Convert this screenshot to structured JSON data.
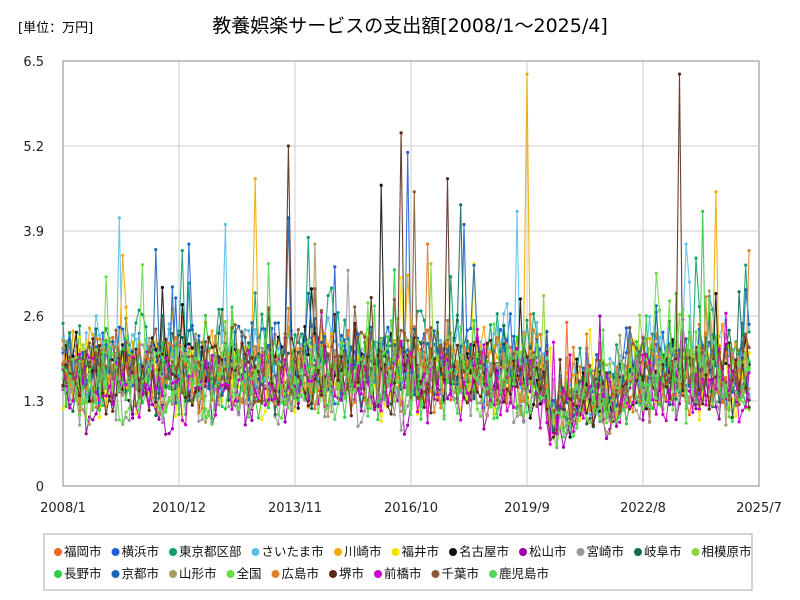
{
  "chart_data": {
    "type": "line",
    "title": "教養娯楽サービスの支出額[2008/1～2025/4]",
    "unit_label": "[単位：万円]",
    "xlabel": "",
    "ylabel": "",
    "ylim": [
      0,
      6.5
    ],
    "yticks": [
      0,
      1.3,
      2.6,
      3.9,
      5.2,
      6.5
    ],
    "ytick_labels": [
      "0",
      "1.3",
      "2.6",
      "3.9",
      "5.2",
      "6.5"
    ],
    "x_start": "2008/1",
    "x_end": "2025/7",
    "xticks": [
      "2008/1",
      "2010/12",
      "2013/11",
      "2016/10",
      "2019/9",
      "2022/8",
      "2025/7"
    ],
    "x_last_data": "2025/4",
    "grid": true,
    "legend_position": "bottom",
    "series": [
      {
        "name": "福岡市",
        "color": "#f26522",
        "base": 1.75,
        "spikes": [
          [
            2020,
            9,
            2.5
          ]
        ]
      },
      {
        "name": "横浜市",
        "color": "#1f5fd6",
        "base": 1.85,
        "spikes": [
          [
            2016,
            9,
            5.1
          ],
          [
            2011,
            3,
            3.7
          ],
          [
            2018,
            2,
            4.0
          ]
        ]
      },
      {
        "name": "東京都区部",
        "color": "#0e9f6e",
        "base": 2.05,
        "spikes": [
          [
            2011,
            1,
            3.6
          ],
          [
            2014,
            3,
            3.8
          ]
        ]
      },
      {
        "name": "さいたま市",
        "color": "#5bc0eb",
        "base": 1.95,
        "spikes": [
          [
            2009,
            6,
            4.1
          ],
          [
            2012,
            2,
            4.0
          ],
          [
            2019,
            6,
            4.2
          ],
          [
            2023,
            9,
            3.7
          ]
        ]
      },
      {
        "name": "川崎市",
        "color": "#f2a900",
        "base": 1.85,
        "spikes": [
          [
            2019,
            9,
            6.3
          ],
          [
            2012,
            11,
            4.7
          ],
          [
            2024,
            6,
            4.5
          ]
        ]
      },
      {
        "name": "福井市",
        "color": "#f5e400",
        "base": 1.65,
        "spikes": [
          [
            2018,
            5,
            3.4
          ]
        ]
      },
      {
        "name": "名古屋市",
        "color": "#111111",
        "base": 1.7,
        "spikes": [
          [
            2016,
            1,
            4.6
          ]
        ]
      },
      {
        "name": "松山市",
        "color": "#9900aa",
        "base": 1.45,
        "spikes": [
          [
            2021,
            7,
            2.6
          ]
        ]
      },
      {
        "name": "宮崎市",
        "color": "#999999",
        "base": 1.5,
        "spikes": [
          [
            2015,
            3,
            3.3
          ]
        ]
      },
      {
        "name": "岐阜市",
        "color": "#156b5a",
        "base": 1.75,
        "spikes": [
          [
            2018,
            1,
            4.3
          ]
        ]
      },
      {
        "name": "相模原市",
        "color": "#8ad33a",
        "base": 1.75,
        "spikes": [
          [
            2017,
            4,
            3.4
          ]
        ]
      },
      {
        "name": "長野市",
        "color": "#2ecc40",
        "base": 1.65,
        "spikes": [
          [
            2024,
            2,
            4.2
          ]
        ]
      },
      {
        "name": "京都市",
        "color": "#1a66b8",
        "base": 1.9,
        "spikes": [
          [
            2013,
            9,
            4.1
          ],
          [
            2025,
            3,
            3.0
          ]
        ]
      },
      {
        "name": "山形市",
        "color": "#a8a060",
        "base": 1.6,
        "spikes": [
          [
            2014,
            5,
            3.7
          ]
        ]
      },
      {
        "name": "全国",
        "color": "#66dd44",
        "base": 1.62,
        "spikes": []
      },
      {
        "name": "広島市",
        "color": "#e0802a",
        "base": 1.75,
        "spikes": [
          [
            2017,
            3,
            3.7
          ],
          [
            2025,
            4,
            3.6
          ]
        ]
      },
      {
        "name": "堺市",
        "color": "#5a2a1a",
        "base": 1.7,
        "spikes": [
          [
            2023,
            7,
            6.3
          ],
          [
            2016,
            7,
            5.4
          ],
          [
            2013,
            9,
            5.2
          ],
          [
            2017,
            9,
            4.7
          ]
        ]
      },
      {
        "name": "前橋市",
        "color": "#cc00cc",
        "base": 1.55,
        "spikes": [
          [
            2020,
            5,
            2.2
          ]
        ]
      },
      {
        "name": "千葉市",
        "color": "#8a5a3a",
        "base": 1.85,
        "spikes": [
          [
            2016,
            11,
            4.5
          ]
        ]
      },
      {
        "name": "鹿児島市",
        "color": "#55d855",
        "base": 1.6,
        "spikes": [
          [
            2013,
            3,
            3.4
          ]
        ]
      }
    ]
  }
}
